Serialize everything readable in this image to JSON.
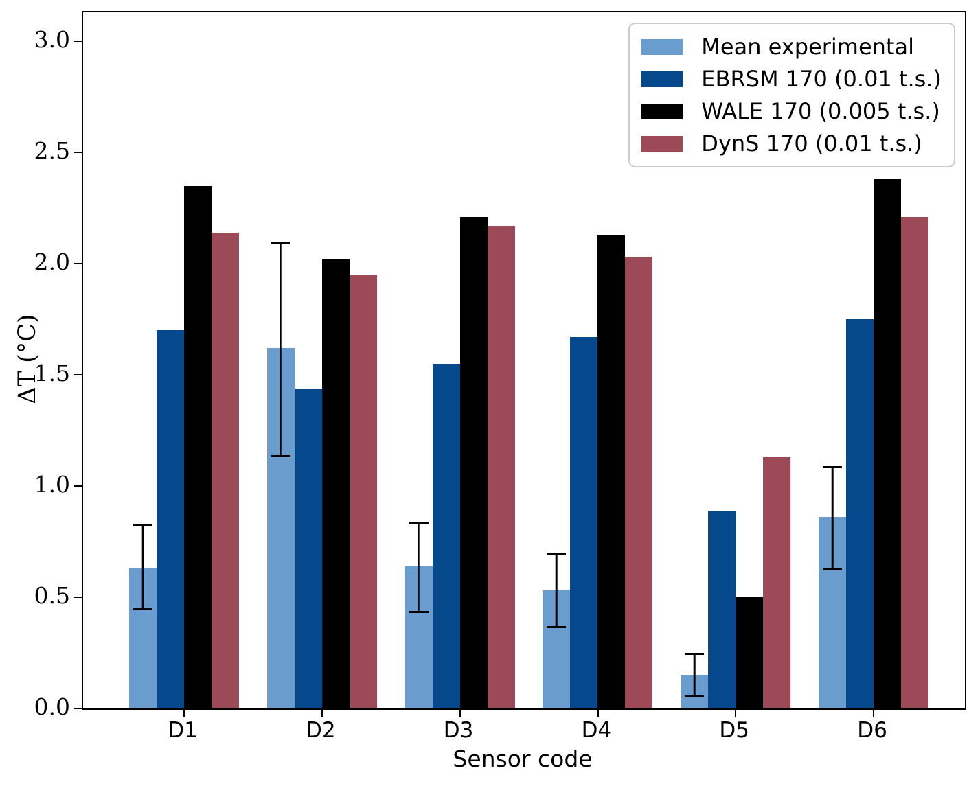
{
  "chart_data": {
    "type": "bar",
    "title": "",
    "xlabel": "Sensor code",
    "ylabel": "ΔT (°C)",
    "categories": [
      "D1",
      "D2",
      "D3",
      "D4",
      "D5",
      "D6"
    ],
    "series": [
      {
        "name": "Mean experimental",
        "color": "#6b9cce",
        "values": [
          0.63,
          1.62,
          0.64,
          0.53,
          0.15,
          0.86
        ],
        "error_low": [
          0.44,
          1.13,
          0.43,
          0.36,
          0.05,
          0.62
        ],
        "error_high": [
          0.83,
          2.1,
          0.84,
          0.7,
          0.25,
          1.09
        ]
      },
      {
        "name": "EBRSM 170 (0.01 t.s.)",
        "color": "#05498c",
        "values": [
          1.7,
          1.44,
          1.55,
          1.67,
          0.89,
          1.75
        ]
      },
      {
        "name": "WALE 170 (0.005 t.s.)",
        "color": "#000000",
        "values": [
          2.35,
          2.02,
          2.21,
          2.13,
          0.5,
          2.38
        ]
      },
      {
        "name": "DynS 170 (0.01 t.s.)",
        "color": "#9c4a58",
        "values": [
          2.14,
          1.95,
          2.17,
          2.03,
          1.13,
          2.21
        ]
      }
    ],
    "ytick_labels": [
      "0.0",
      "0.5",
      "1.0",
      "1.5",
      "2.0",
      "2.5",
      "3.0"
    ],
    "yticks": [
      0,
      0.5,
      1.0,
      1.5,
      2.0,
      2.5,
      3.0
    ],
    "ylim": [
      0,
      3.13
    ],
    "grid": false,
    "legend": {
      "position": "upper right"
    },
    "error_bar_color": "#000000"
  }
}
